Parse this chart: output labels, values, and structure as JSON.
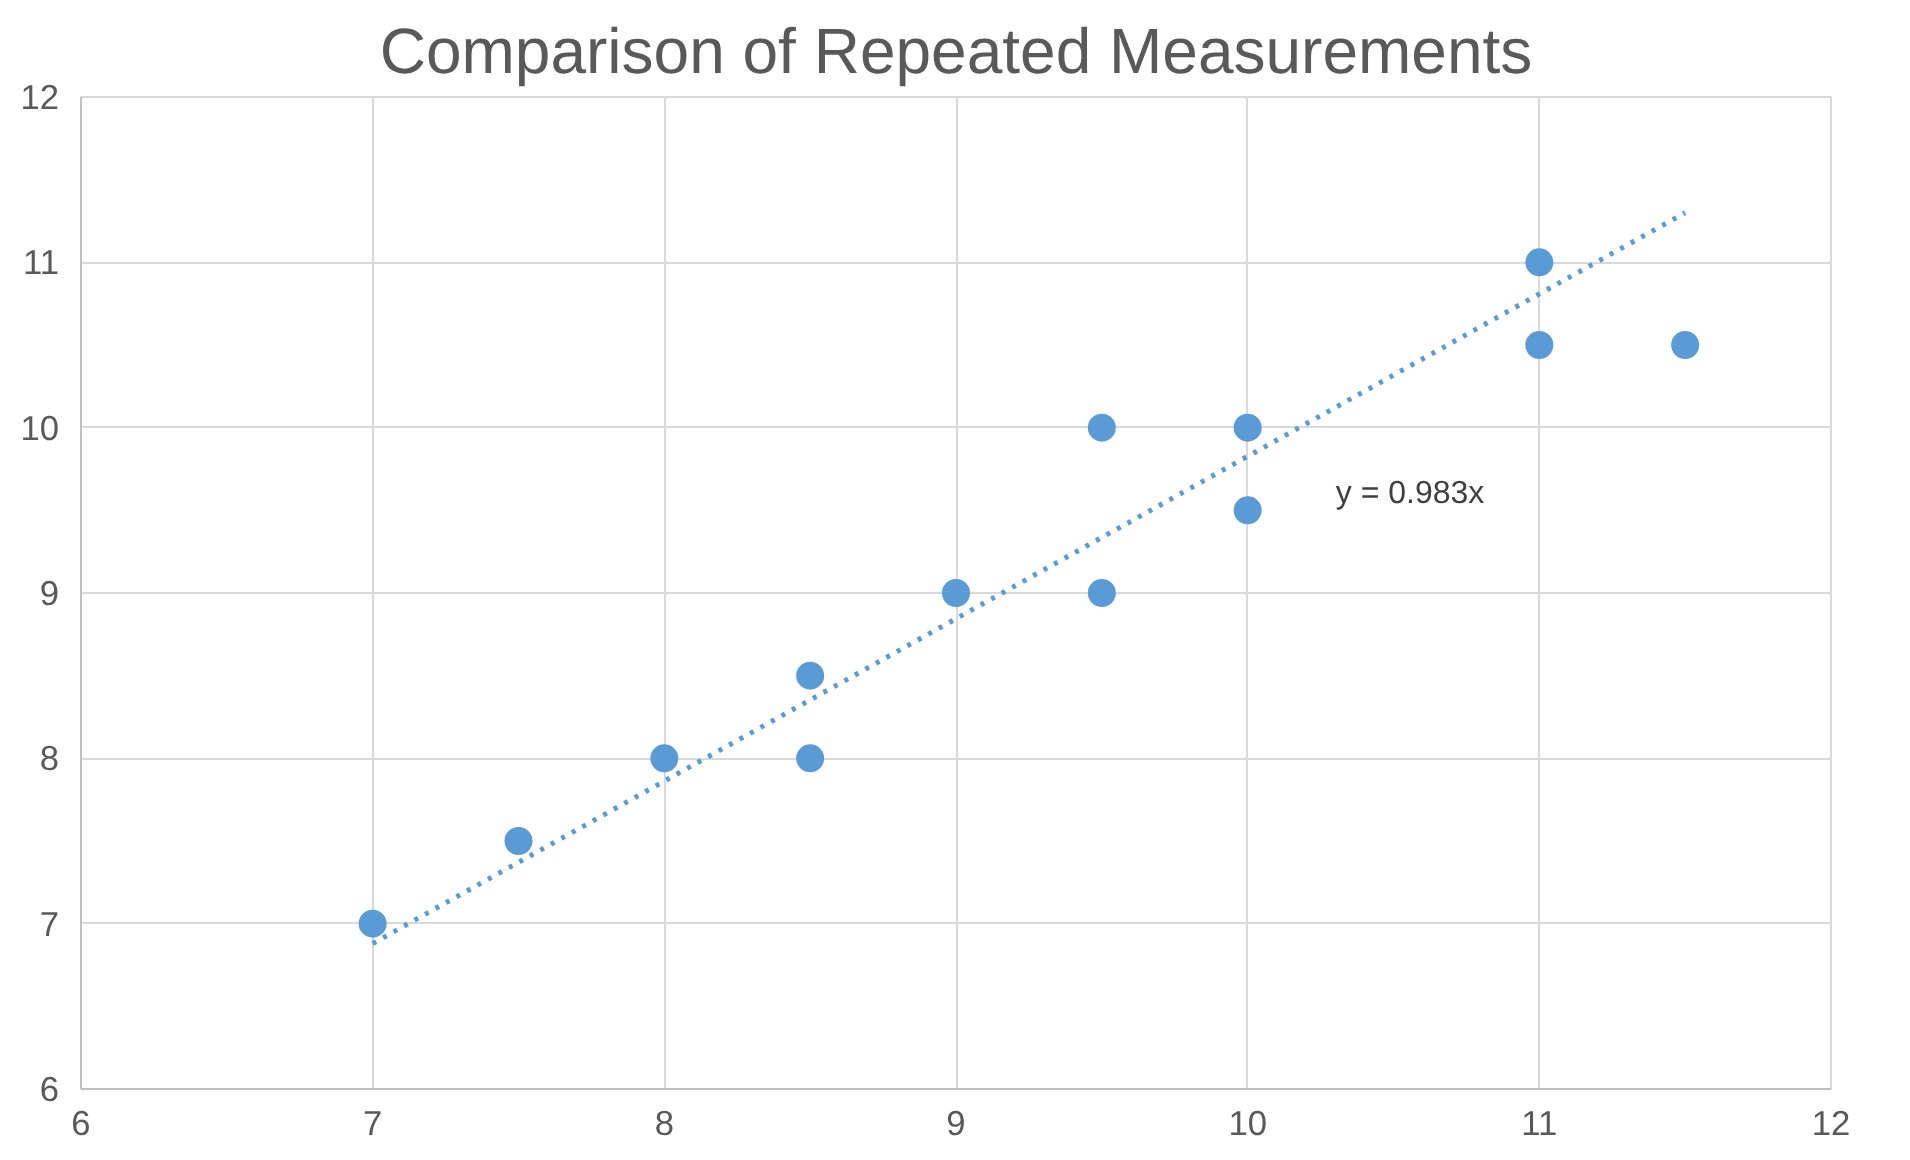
{
  "chart_data": {
    "type": "scatter",
    "title": "Comparison of Repeated Measurements",
    "series": [
      {
        "color": "#5b9bd5",
        "marker": "circle",
        "x": [
          7,
          7.5,
          8,
          8.5,
          8.5,
          9,
          9.5,
          9.5,
          10,
          10,
          11,
          11,
          11.5
        ],
        "values": [
          7,
          7.5,
          8,
          8.5,
          8,
          9,
          10,
          9,
          10,
          9.5,
          11,
          10.5,
          10.5
        ]
      },
      {
        "type": "line",
        "color": "#5b9bd5",
        "line_style": "dotted",
        "marker": "none",
        "x": [
          7,
          11.5
        ],
        "values": [
          6.88,
          11.3
        ]
      }
    ],
    "annotations": [
      "y = 0.983x"
    ],
    "xlim": [
      6,
      12
    ],
    "ylim": [
      6,
      12
    ],
    "xticks": [
      6,
      7,
      8,
      9,
      10,
      11,
      12
    ],
    "yticks": [
      6,
      7,
      8,
      9,
      10,
      11,
      12
    ],
    "grid": true
  }
}
